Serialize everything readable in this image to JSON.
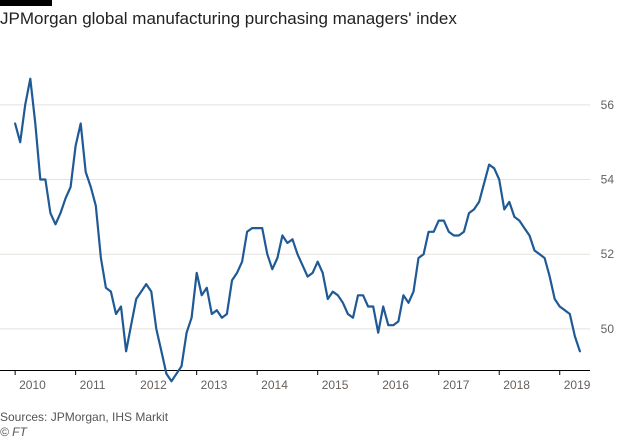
{
  "header": {
    "title": "JPMorgan global manufacturing purchasing managers' index"
  },
  "footer": {
    "source": "Sources: JPMorgan, IHS Markit",
    "credit": "© FT"
  },
  "colors": {
    "line": "#1f5a96",
    "grid": "#e6e1dc",
    "axis": "#000000",
    "tick_text": "#66605c",
    "brand": "#000000"
  },
  "chart_data": {
    "type": "line",
    "title": "JPMorgan global manufacturing purchasing managers' index",
    "xlabel": "",
    "ylabel": "",
    "x_start": "2010-01",
    "x_frequency": "monthly",
    "xlim": [
      "2009-10",
      "2019-07"
    ],
    "ylim": [
      48.9,
      57.2
    ],
    "y_ticks": [
      50,
      52,
      54,
      56
    ],
    "y_tick_labels": [
      "50",
      "52",
      "54",
      "56"
    ],
    "x_tick_labels": [
      "2010",
      "2011",
      "2012",
      "2013",
      "2014",
      "2015",
      "2016",
      "2017",
      "2018",
      "2019"
    ],
    "grid": "horizontal",
    "y_axis_side": "right",
    "series": [
      {
        "name": "",
        "values": [
          55.5,
          55.0,
          56.0,
          56.7,
          55.5,
          54.0,
          54.0,
          53.1,
          52.8,
          53.1,
          53.5,
          53.8,
          54.9,
          55.5,
          54.2,
          53.8,
          53.3,
          51.9,
          51.1,
          51.0,
          50.4,
          50.6,
          49.4,
          50.1,
          50.8,
          51.0,
          51.2,
          51.0,
          50.0,
          49.4,
          48.8,
          48.6,
          48.8,
          49.0,
          49.9,
          50.3,
          51.5,
          50.9,
          51.1,
          50.4,
          50.5,
          50.3,
          50.4,
          51.3,
          51.5,
          51.8,
          52.6,
          52.7,
          52.7,
          52.7,
          52.0,
          51.6,
          51.9,
          52.5,
          52.3,
          52.4,
          52.0,
          51.7,
          51.4,
          51.5,
          51.8,
          51.5,
          50.8,
          51.0,
          50.9,
          50.7,
          50.4,
          50.3,
          50.9,
          50.9,
          50.6,
          50.6,
          49.9,
          50.6,
          50.1,
          50.1,
          50.2,
          50.9,
          50.7,
          51.0,
          51.9,
          52.0,
          52.6,
          52.6,
          52.9,
          52.9,
          52.6,
          52.5,
          52.5,
          52.6,
          53.1,
          53.2,
          53.4,
          53.9,
          54.4,
          54.3,
          54.0,
          53.2,
          53.4,
          53.0,
          52.9,
          52.7,
          52.5,
          52.1,
          52.0,
          51.9,
          51.4,
          50.8,
          50.6,
          50.5,
          50.4,
          49.8,
          49.4
        ]
      }
    ]
  }
}
